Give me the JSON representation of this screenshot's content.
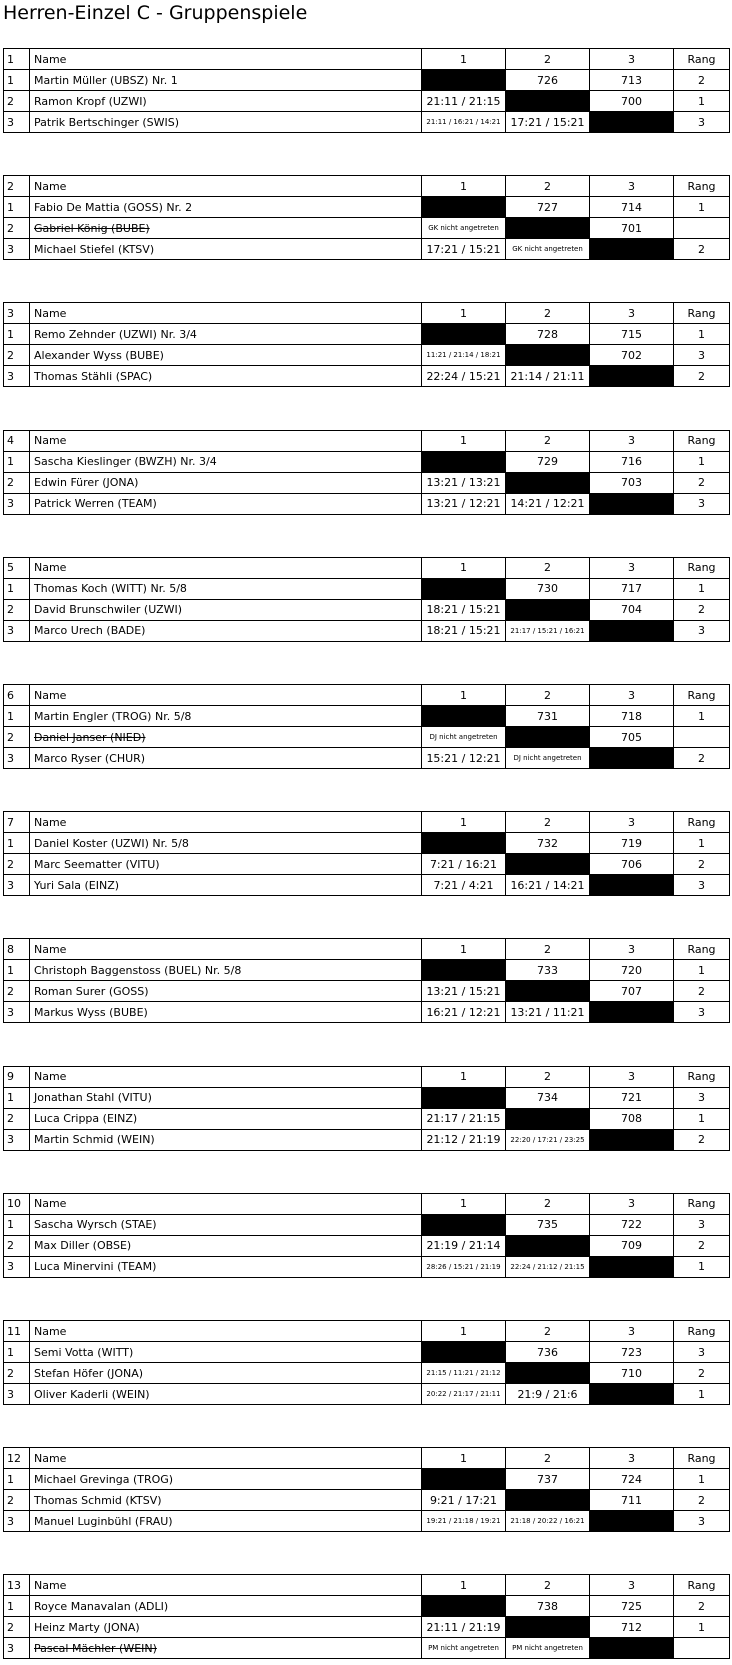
{
  "title": "Herren-Einzel C - Gruppenspiele",
  "groups": [
    {
      "header": [
        "1",
        "Name",
        "1",
        "2",
        "3",
        "Rang"
      ],
      "rows": [
        {
          "cells": [
            "1",
            "Martin Müller (UBSZ) Nr. 1",
            null,
            "726",
            "713",
            "2"
          ],
          "struck": false
        },
        {
          "cells": [
            "2",
            "Ramon Kropf (UZWI)",
            "21:11 / 21:15",
            null,
            "700",
            "1"
          ],
          "struck": false
        },
        {
          "cells": [
            "3",
            "Patrik Bertschinger (SWIS)",
            "21:11 / 16:21 / 14:21",
            "17:21 / 15:21",
            null,
            "3"
          ],
          "struck": false
        }
      ]
    },
    {
      "header": [
        "2",
        "Name",
        "1",
        "2",
        "3",
        "Rang"
      ],
      "rows": [
        {
          "cells": [
            "1",
            "Fabio De Mattia (GOSS) Nr. 2",
            null,
            "727",
            "714",
            "1"
          ],
          "struck": false
        },
        {
          "cells": [
            "2",
            "Gabriel König (BUBE)",
            "GK nicht angetreten",
            null,
            "701",
            null
          ],
          "struck": true
        },
        {
          "cells": [
            "3",
            "Michael Stiefel (KTSV)",
            "17:21 / 15:21",
            "GK nicht angetreten",
            null,
            "2"
          ],
          "struck": false
        }
      ]
    },
    {
      "header": [
        "3",
        "Name",
        "1",
        "2",
        "3",
        "Rang"
      ],
      "rows": [
        {
          "cells": [
            "1",
            "Remo Zehnder (UZWI) Nr. 3/4",
            null,
            "728",
            "715",
            "1"
          ],
          "struck": false
        },
        {
          "cells": [
            "2",
            "Alexander Wyss (BUBE)",
            "11:21 / 21:14 / 18:21",
            null,
            "702",
            "3"
          ],
          "struck": false
        },
        {
          "cells": [
            "3",
            "Thomas Stähli (SPAC)",
            "22:24 / 15:21",
            "21:14 / 21:11",
            null,
            "2"
          ],
          "struck": false
        }
      ]
    },
    {
      "header": [
        "4",
        "Name",
        "1",
        "2",
        "3",
        "Rang"
      ],
      "rows": [
        {
          "cells": [
            "1",
            "Sascha Kieslinger (BWZH) Nr. 3/4",
            null,
            "729",
            "716",
            "1"
          ],
          "struck": false
        },
        {
          "cells": [
            "2",
            "Edwin Fürer (JONA)",
            "13:21 / 13:21",
            null,
            "703",
            "2"
          ],
          "struck": false
        },
        {
          "cells": [
            "3",
            "Patrick Werren (TEAM)",
            "13:21 / 12:21",
            "14:21 / 12:21",
            null,
            "3"
          ],
          "struck": false
        }
      ]
    },
    {
      "header": [
        "5",
        "Name",
        "1",
        "2",
        "3",
        "Rang"
      ],
      "rows": [
        {
          "cells": [
            "1",
            "Thomas Koch (WITT) Nr. 5/8",
            null,
            "730",
            "717",
            "1"
          ],
          "struck": false
        },
        {
          "cells": [
            "2",
            "David Brunschwiler (UZWI)",
            "18:21 / 15:21",
            null,
            "704",
            "2"
          ],
          "struck": false
        },
        {
          "cells": [
            "3",
            "Marco Urech (BADE)",
            "18:21 / 15:21",
            "21:17 / 15:21 / 16:21",
            null,
            "3"
          ],
          "struck": false
        }
      ]
    },
    {
      "header": [
        "6",
        "Name",
        "1",
        "2",
        "3",
        "Rang"
      ],
      "rows": [
        {
          "cells": [
            "1",
            "Martin Engler (TROG) Nr. 5/8",
            null,
            "731",
            "718",
            "1"
          ],
          "struck": false
        },
        {
          "cells": [
            "2",
            "Daniel Janser (NIED)",
            "DJ nicht angetreten",
            null,
            "705",
            null
          ],
          "struck": true
        },
        {
          "cells": [
            "3",
            "Marco Ryser (CHUR)",
            "15:21 / 12:21",
            "DJ nicht angetreten",
            null,
            "2"
          ],
          "struck": false
        }
      ]
    },
    {
      "header": [
        "7",
        "Name",
        "1",
        "2",
        "3",
        "Rang"
      ],
      "rows": [
        {
          "cells": [
            "1",
            "Daniel Koster (UZWI) Nr. 5/8",
            null,
            "732",
            "719",
            "1"
          ],
          "struck": false
        },
        {
          "cells": [
            "2",
            "Marc Seematter (VITU)",
            "7:21 / 16:21",
            null,
            "706",
            "2"
          ],
          "struck": false
        },
        {
          "cells": [
            "3",
            "Yuri Sala (EINZ)",
            "7:21 / 4:21",
            "16:21 / 14:21",
            null,
            "3"
          ],
          "struck": false
        }
      ]
    },
    {
      "header": [
        "8",
        "Name",
        "1",
        "2",
        "3",
        "Rang"
      ],
      "rows": [
        {
          "cells": [
            "1",
            "Christoph Baggenstoss (BUEL) Nr. 5/8",
            null,
            "733",
            "720",
            "1"
          ],
          "struck": false
        },
        {
          "cells": [
            "2",
            "Roman Surer (GOSS)",
            "13:21 / 15:21",
            null,
            "707",
            "2"
          ],
          "struck": false
        },
        {
          "cells": [
            "3",
            "Markus Wyss (BUBE)",
            "16:21 / 12:21",
            "13:21 / 11:21",
            null,
            "3"
          ],
          "struck": false
        }
      ]
    },
    {
      "header": [
        "9",
        "Name",
        "1",
        "2",
        "3",
        "Rang"
      ],
      "rows": [
        {
          "cells": [
            "1",
            "Jonathan Stahl (VITU)",
            null,
            "734",
            "721",
            "3"
          ],
          "struck": false
        },
        {
          "cells": [
            "2",
            "Luca Crippa (EINZ)",
            "21:17 / 21:15",
            null,
            "708",
            "1"
          ],
          "struck": false
        },
        {
          "cells": [
            "3",
            "Martin Schmid (WEIN)",
            "21:12 / 21:19",
            "22:20 / 17:21 / 23:25",
            null,
            "2"
          ],
          "struck": false
        }
      ]
    },
    {
      "header": [
        "10",
        "Name",
        "1",
        "2",
        "3",
        "Rang"
      ],
      "rows": [
        {
          "cells": [
            "1",
            "Sascha Wyrsch (STAE)",
            null,
            "735",
            "722",
            "3"
          ],
          "struck": false
        },
        {
          "cells": [
            "2",
            "Max Diller (OBSE)",
            "21:19 / 21:14",
            null,
            "709",
            "2"
          ],
          "struck": false
        },
        {
          "cells": [
            "3",
            "Luca Minervini (TEAM)",
            "28:26 / 15:21 / 21:19",
            "22:24 / 21:12 / 21:15",
            null,
            "1"
          ],
          "struck": false
        }
      ]
    },
    {
      "header": [
        "11",
        "Name",
        "1",
        "2",
        "3",
        "Rang"
      ],
      "rows": [
        {
          "cells": [
            "1",
            "Semi Votta (WITT)",
            null,
            "736",
            "723",
            "3"
          ],
          "struck": false
        },
        {
          "cells": [
            "2",
            "Stefan Höfer (JONA)",
            "21:15 / 11:21 / 21:12",
            null,
            "710",
            "2"
          ],
          "struck": false
        },
        {
          "cells": [
            "3",
            "Oliver Kaderli (WEIN)",
            "20:22 / 21:17 / 21:11",
            "21:9 / 21:6",
            null,
            "1"
          ],
          "struck": false
        }
      ]
    },
    {
      "header": [
        "12",
        "Name",
        "1",
        "2",
        "3",
        "Rang"
      ],
      "rows": [
        {
          "cells": [
            "1",
            "Michael Grevinga (TROG)",
            null,
            "737",
            "724",
            "1"
          ],
          "struck": false
        },
        {
          "cells": [
            "2",
            "Thomas Schmid (KTSV)",
            "9:21 / 17:21",
            null,
            "711",
            "2"
          ],
          "struck": false
        },
        {
          "cells": [
            "3",
            "Manuel Luginbühl (FRAU)",
            "19:21 / 21:18 / 19:21",
            "21:18 / 20:22 / 16:21",
            null,
            "3"
          ],
          "struck": false
        }
      ]
    },
    {
      "header": [
        "13",
        "Name",
        "1",
        "2",
        "3",
        "Rang"
      ],
      "rows": [
        {
          "cells": [
            "1",
            "Royce Manavalan (ADLI)",
            null,
            "738",
            "725",
            "2"
          ],
          "struck": false
        },
        {
          "cells": [
            "2",
            "Heinz Marty (JONA)",
            "21:11 / 21:19",
            null,
            "712",
            "1"
          ],
          "struck": false
        },
        {
          "cells": [
            "3",
            "Pascal Mächler (WEIN)",
            "PM nicht angetreten",
            "PM nicht angetreten",
            null,
            null
          ],
          "struck": true
        }
      ]
    }
  ]
}
